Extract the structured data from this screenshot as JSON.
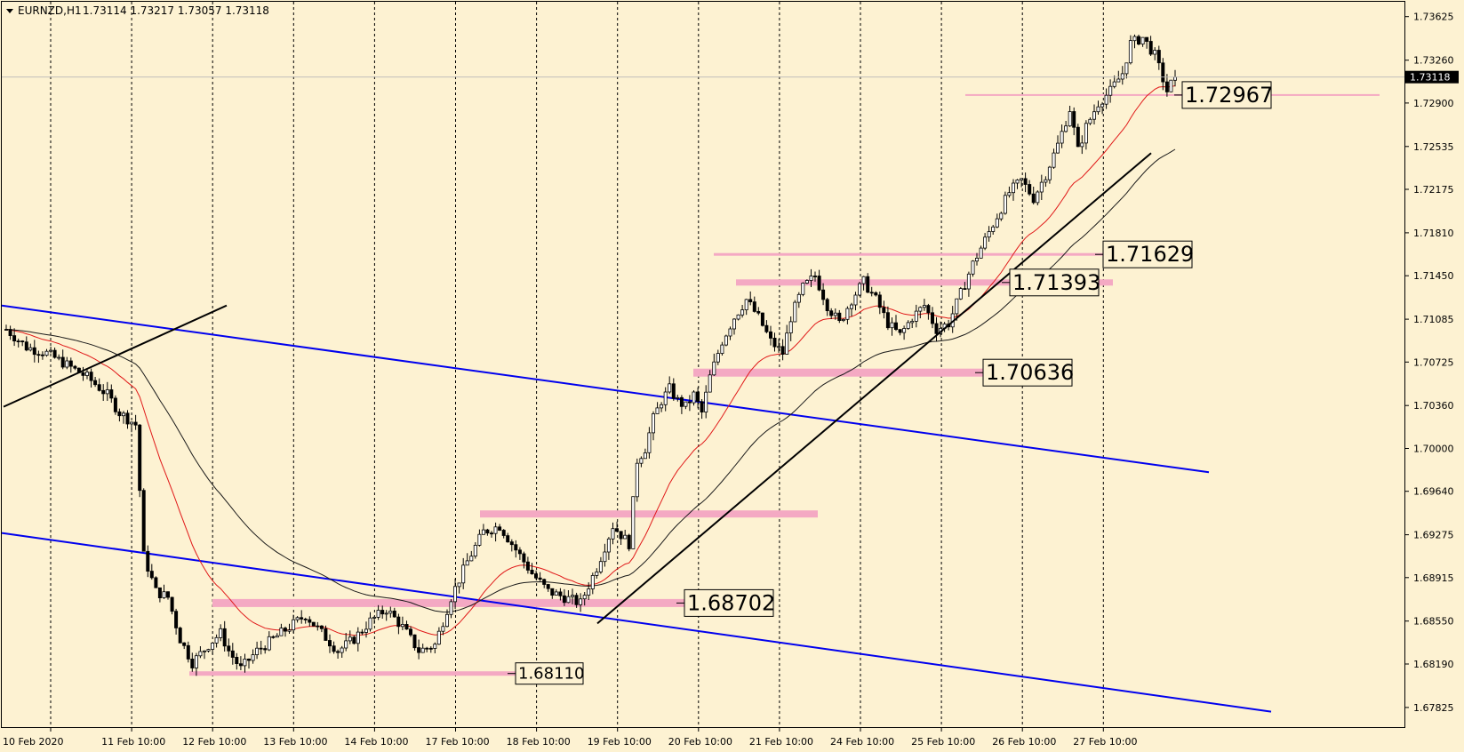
{
  "header": {
    "symbol": "EURNZD,H1",
    "ohlc": "1.73114 1.73217 1.73057 1.73118"
  },
  "colors": {
    "background": "#fdf2d2",
    "ma_fast": "#e01818",
    "ma_slow": "#1a1a1a",
    "channel": "#0000ee",
    "trendline": "#000000",
    "level": "#f4a9c3",
    "current_price_bg": "#000000"
  },
  "chart_data": {
    "type": "candlestick",
    "timeframe": "H1",
    "y_axis": {
      "ticks": [
        "1.73625",
        "1.73260",
        "1.72900",
        "1.72535",
        "1.72175",
        "1.71810",
        "1.71450",
        "1.71085",
        "1.70725",
        "1.70360",
        "1.70000",
        "1.69640",
        "1.69275",
        "1.68915",
        "1.68550",
        "1.68190",
        "1.67825"
      ],
      "min": 1.6766,
      "max": 1.7375
    },
    "x_axis": {
      "ticks": [
        "10 Feb 2020",
        "11 Feb 10:00",
        "12 Feb 10:00",
        "13 Feb 10:00",
        "14 Feb 10:00",
        "17 Feb 10:00",
        "18 Feb 10:00",
        "19 Feb 10:00",
        "20 Feb 10:00",
        "21 Feb 10:00",
        "24 Feb 10:00",
        "25 Feb 10:00",
        "26 Feb 10:00",
        "27 Feb 10:00"
      ]
    },
    "current_price": "1.73118",
    "grid": "vertical dashed",
    "levels": [
      {
        "label": "1.72967",
        "value": 1.72967
      },
      {
        "label": "1.71629",
        "value": 1.71629
      },
      {
        "label": "1.71393",
        "value": 1.71393
      },
      {
        "label": "1.70636",
        "value": 1.70636
      },
      {
        "label": "1.68702",
        "value": 1.68702
      },
      {
        "label": "1.68110",
        "value": 1.6811
      }
    ],
    "price_path": [
      [
        0,
        1.71
      ],
      [
        5,
        1.7085
      ],
      [
        10,
        1.708
      ],
      [
        15,
        1.707
      ],
      [
        20,
        1.706
      ],
      [
        25,
        1.7045
      ],
      [
        28,
        1.703
      ],
      [
        32,
        1.702
      ],
      [
        34,
        1.691
      ],
      [
        37,
        1.688
      ],
      [
        40,
        1.6875
      ],
      [
        43,
        1.684
      ],
      [
        46,
        1.682
      ],
      [
        50,
        1.6835
      ],
      [
        53,
        1.6845
      ],
      [
        55,
        1.683
      ],
      [
        58,
        1.6815
      ],
      [
        62,
        1.683
      ],
      [
        66,
        1.684
      ],
      [
        70,
        1.685
      ],
      [
        74,
        1.686
      ],
      [
        78,
        1.6845
      ],
      [
        82,
        1.683
      ],
      [
        86,
        1.684
      ],
      [
        90,
        1.6855
      ],
      [
        94,
        1.6865
      ],
      [
        98,
        1.685
      ],
      [
        102,
        1.683
      ],
      [
        106,
        1.6835
      ],
      [
        110,
        1.6875
      ],
      [
        114,
        1.6905
      ],
      [
        118,
        1.693
      ],
      [
        122,
        1.6935
      ],
      [
        126,
        1.6915
      ],
      [
        130,
        1.6895
      ],
      [
        134,
        1.688
      ],
      [
        138,
        1.6875
      ],
      [
        142,
        1.687
      ],
      [
        146,
        1.69
      ],
      [
        150,
        1.6935
      ],
      [
        154,
        1.692
      ],
      [
        156,
        1.699
      ],
      [
        158,
        1.7
      ],
      [
        160,
        1.7025
      ],
      [
        162,
        1.704
      ],
      [
        164,
        1.705
      ],
      [
        166,
        1.704
      ],
      [
        168,
        1.7035
      ],
      [
        170,
        1.7045
      ],
      [
        172,
        1.703
      ],
      [
        174,
        1.706
      ],
      [
        177,
        1.709
      ],
      [
        180,
        1.711
      ],
      [
        183,
        1.7125
      ],
      [
        186,
        1.711
      ],
      [
        189,
        1.709
      ],
      [
        192,
        1.708
      ],
      [
        194,
        1.711
      ],
      [
        197,
        1.7135
      ],
      [
        200,
        1.7145
      ],
      [
        203,
        1.712
      ],
      [
        206,
        1.7105
      ],
      [
        209,
        1.7125
      ],
      [
        212,
        1.714
      ],
      [
        215,
        1.7125
      ],
      [
        218,
        1.7105
      ],
      [
        221,
        1.7095
      ],
      [
        224,
        1.711
      ],
      [
        227,
        1.712
      ],
      [
        230,
        1.71
      ],
      [
        233,
        1.7105
      ],
      [
        236,
        1.713
      ],
      [
        239,
        1.7155
      ],
      [
        242,
        1.7175
      ],
      [
        245,
        1.7195
      ],
      [
        248,
        1.7215
      ],
      [
        251,
        1.7225
      ],
      [
        254,
        1.721
      ],
      [
        257,
        1.723
      ],
      [
        260,
        1.7255
      ],
      [
        263,
        1.7285
      ],
      [
        265,
        1.725
      ],
      [
        267,
        1.727
      ],
      [
        270,
        1.729
      ],
      [
        273,
        1.73
      ],
      [
        276,
        1.7315
      ],
      [
        278,
        1.734
      ],
      [
        281,
        1.7345
      ],
      [
        284,
        1.733
      ],
      [
        287,
        1.73
      ],
      [
        289,
        1.7312
      ]
    ]
  }
}
